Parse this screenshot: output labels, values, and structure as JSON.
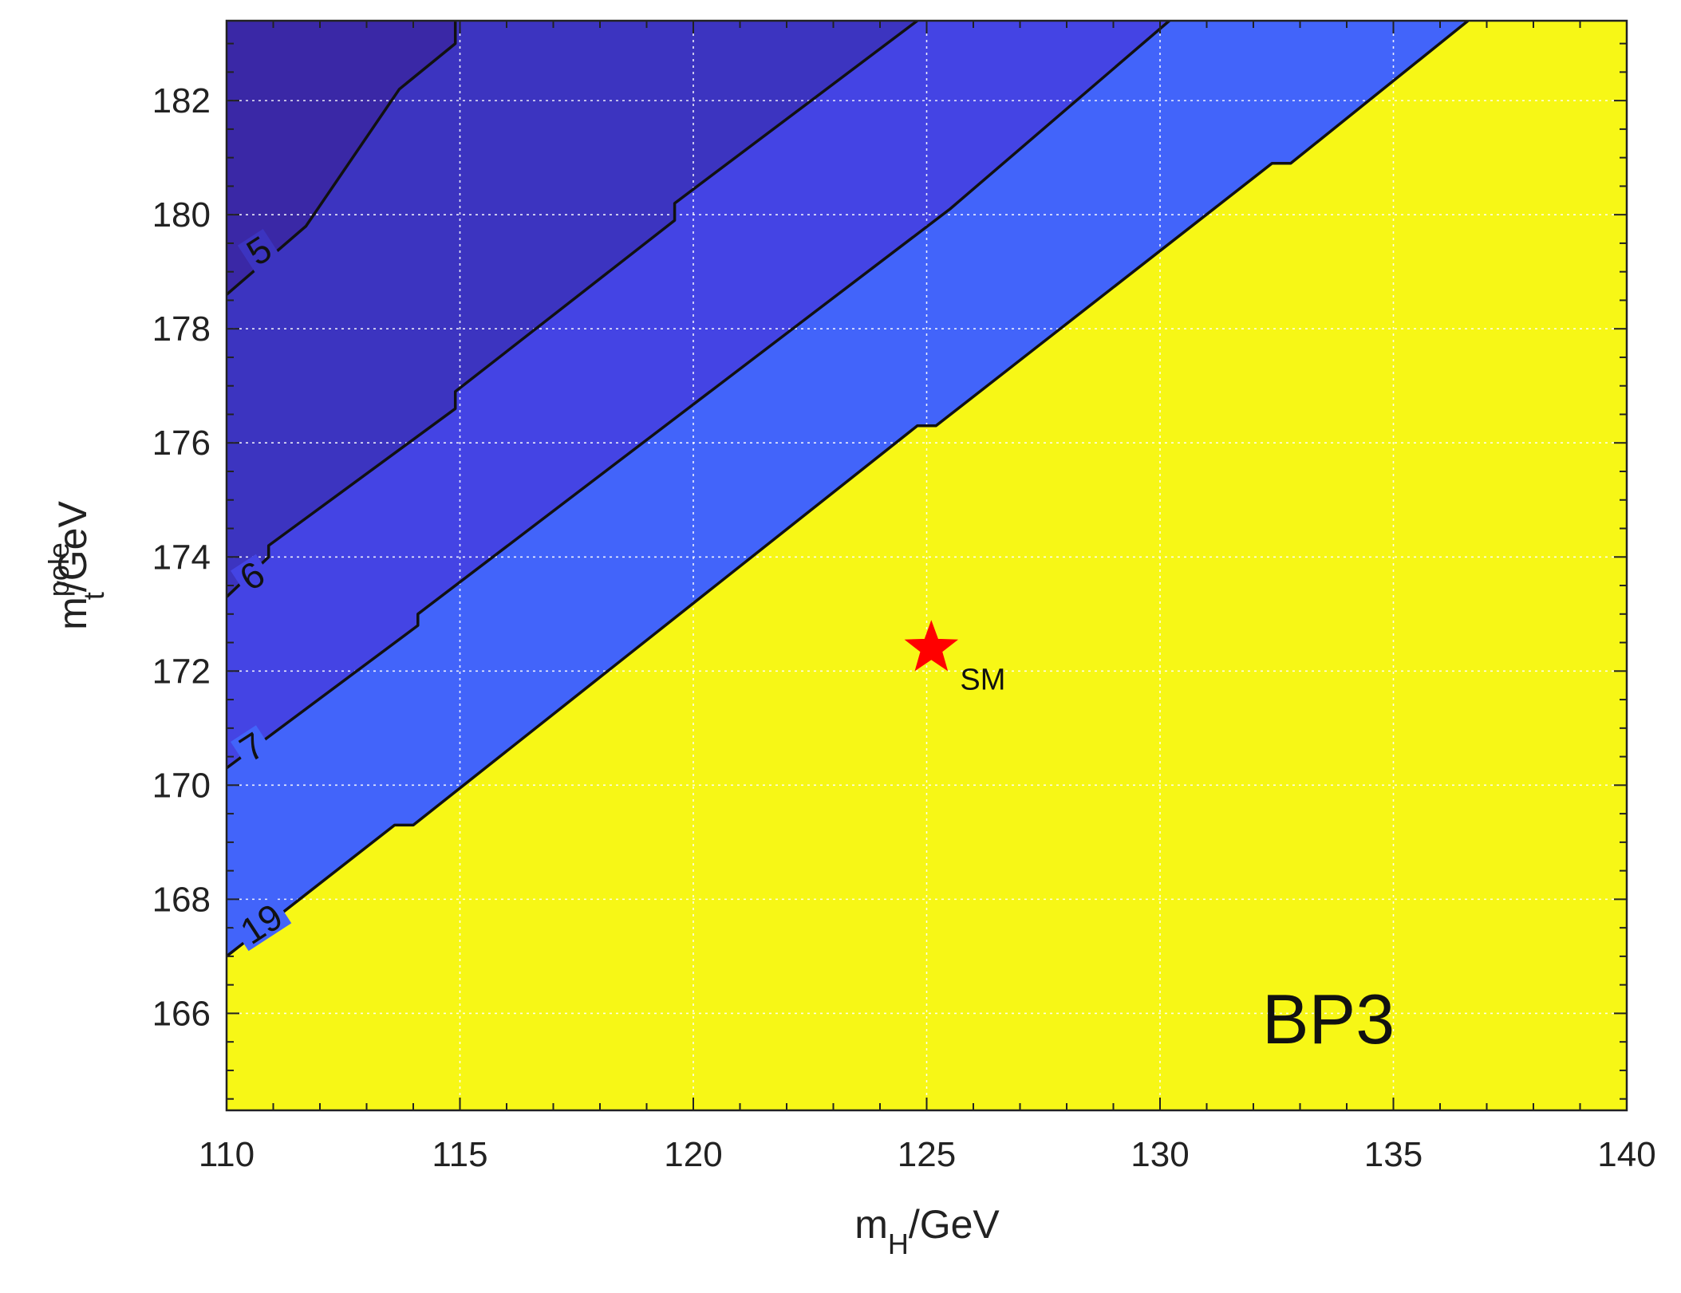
{
  "chart_data": {
    "type": "contour",
    "xlabel": {
      "base": "m",
      "sub": "H",
      "rest": "/GeV"
    },
    "ylabel": {
      "base": "m",
      "sub": "t",
      "sup": "pole",
      "rest": "/GeV"
    },
    "xlim": [
      110,
      140
    ],
    "ylim": [
      164.3,
      183.4
    ],
    "xticks": [
      110,
      115,
      120,
      125,
      130,
      135,
      140
    ],
    "yticks": [
      166,
      168,
      170,
      172,
      174,
      176,
      178,
      180,
      182
    ],
    "xtick_labels": [
      "110",
      "115",
      "120",
      "125",
      "130",
      "135",
      "140"
    ],
    "ytick_labels": [
      "166",
      "168",
      "170",
      "172",
      "174",
      "176",
      "178",
      "180",
      "182"
    ],
    "grid": true,
    "regions": [
      {
        "color": "#3a28a6"
      },
      {
        "color": "#3c34c0"
      },
      {
        "color": "#4444e4"
      },
      {
        "color": "#4264fa"
      },
      {
        "color": "#f7f716"
      }
    ],
    "contours": [
      {
        "label": "5",
        "points": [
          [
            110,
            178.6
          ],
          [
            111.7,
            179.8
          ],
          [
            113.7,
            182.2
          ],
          [
            114.9,
            183.0
          ],
          [
            114.9,
            183.4
          ]
        ]
      },
      {
        "label": "6",
        "points": [
          [
            110,
            173.3
          ],
          [
            110.9,
            174.0
          ],
          [
            110.9,
            174.2
          ],
          [
            114.9,
            176.6
          ],
          [
            114.9,
            176.9
          ],
          [
            119.6,
            179.9
          ],
          [
            119.6,
            180.2
          ],
          [
            124.8,
            183.4
          ]
        ]
      },
      {
        "label": "7",
        "points": [
          [
            110,
            170.3
          ],
          [
            114.1,
            172.8
          ],
          [
            114.1,
            173.0
          ],
          [
            125.5,
            180.1
          ],
          [
            130.2,
            183.4
          ]
        ]
      },
      {
        "label": "19",
        "points": [
          [
            110,
            167.0
          ],
          [
            113.6,
            169.3
          ],
          [
            114.0,
            169.3
          ],
          [
            124.8,
            176.3
          ],
          [
            125.2,
            176.3
          ],
          [
            132.4,
            180.9
          ],
          [
            132.8,
            180.9
          ],
          [
            136.6,
            183.4
          ]
        ]
      }
    ],
    "point": {
      "x": 125.1,
      "y": 172.4,
      "label": "SM",
      "color": "#ff0000"
    },
    "annotation": "BP3"
  }
}
